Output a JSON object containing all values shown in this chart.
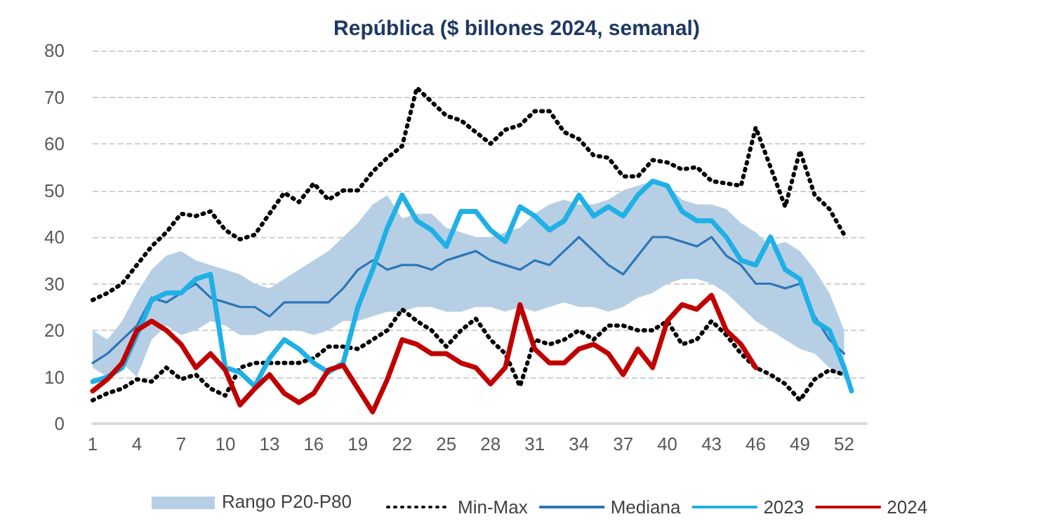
{
  "chart_data": {
    "type": "line",
    "title": "República ($ billones 2024, semanal)",
    "annotations": [
      "Rango P20-P80"
    ],
    "x": [
      1,
      2,
      3,
      4,
      5,
      6,
      7,
      8,
      9,
      10,
      11,
      12,
      13,
      14,
      15,
      16,
      17,
      18,
      19,
      20,
      21,
      22,
      23,
      24,
      25,
      26,
      27,
      28,
      29,
      30,
      31,
      32,
      33,
      34,
      35,
      36,
      37,
      38,
      39,
      40,
      41,
      42,
      43,
      44,
      45,
      46,
      47,
      48,
      49,
      50,
      51,
      52
    ],
    "xlim": [
      1,
      53.5
    ],
    "xticks": [
      1,
      4,
      7,
      10,
      13,
      16,
      19,
      22,
      25,
      28,
      31,
      34,
      37,
      40,
      43,
      46,
      49,
      52
    ],
    "ylim": [
      0,
      80
    ],
    "yticks": [
      0,
      10,
      20,
      30,
      40,
      50,
      60,
      70,
      80
    ],
    "grid": "y",
    "legend": "bottom",
    "marker": "none",
    "line_style": "solid",
    "series": [
      {
        "name": "Min-Max",
        "color": "#000000",
        "line_style": "dotted",
        "values": [
          26.5,
          28,
          30,
          34,
          38,
          41,
          45,
          44.5,
          45.5,
          41.5,
          39.5,
          40.5,
          45,
          49.5,
          47.5,
          51.5,
          48,
          50,
          50,
          54,
          57,
          59.5,
          72,
          69,
          66,
          65,
          62.5,
          60,
          63,
          64,
          67,
          67,
          62.5,
          61,
          57.5,
          57,
          53,
          53,
          56.5,
          56,
          54.5,
          55,
          52,
          51.5,
          51,
          63.5,
          55,
          46.5,
          58.5,
          49,
          46,
          40.5
        ]
      },
      {
        "color": "#000000",
        "line_style": "dotted",
        "values": [
          5,
          6.5,
          7.5,
          9.5,
          9,
          12,
          9.5,
          10.5,
          7.5,
          6,
          12,
          13,
          13,
          13,
          13,
          14,
          16.5,
          16.5,
          16,
          18,
          20,
          24.5,
          22,
          20,
          16.5,
          20,
          22.5,
          18,
          15,
          8,
          18,
          17,
          18,
          20,
          18,
          21,
          21,
          20,
          20,
          22,
          17,
          18,
          22,
          19,
          15,
          12,
          10.5,
          8.5,
          5,
          9.5,
          11.5,
          10.5
        ]
      },
      {
        "name": "Mediana",
        "color": "#2e75b6",
        "values": [
          13,
          15,
          18,
          21,
          27,
          26,
          28,
          30,
          27,
          26,
          25,
          25,
          23,
          26,
          26,
          26,
          26,
          29,
          33,
          35,
          33,
          34,
          34,
          33,
          35,
          36,
          37,
          35,
          34,
          33,
          35,
          34,
          37,
          40,
          37,
          34,
          32,
          36,
          40,
          40,
          39,
          38,
          40,
          36,
          34,
          30,
          30,
          29,
          30,
          23,
          18,
          15
        ],
        "lower": [
          12,
          10,
          13,
          10,
          18,
          21,
          19,
          20,
          22,
          21,
          19,
          19,
          20,
          20,
          20,
          19,
          20,
          22,
          22,
          23,
          24,
          24,
          25,
          25,
          24,
          24,
          25,
          25,
          24,
          25,
          24,
          25,
          26,
          25,
          25,
          24,
          25,
          27,
          28,
          30,
          31,
          31,
          30,
          28,
          25,
          22,
          20,
          18,
          16,
          15,
          12,
          10
        ],
        "upper": [
          20,
          18,
          22,
          28,
          33,
          36,
          37,
          35,
          34,
          33,
          32,
          30,
          29,
          31,
          33,
          35,
          37,
          40,
          43,
          47,
          49,
          44,
          45,
          45,
          42,
          41,
          40,
          40,
          41,
          42,
          45,
          47,
          48,
          47,
          47,
          48,
          50,
          51,
          52,
          51,
          48,
          47,
          47,
          46,
          43,
          41,
          38,
          39,
          37,
          33,
          28,
          20
        ]
      },
      {
        "name": "2023",
        "color": "#1fb0e6",
        "x": [
          1,
          2,
          3,
          4,
          5,
          6,
          7,
          8,
          9,
          10,
          11,
          12,
          13,
          14,
          15,
          16,
          17,
          18,
          19,
          20,
          21,
          22,
          23,
          24,
          25,
          26,
          27,
          28,
          29,
          30,
          31,
          32,
          33,
          34,
          35,
          36,
          37,
          38,
          39,
          40,
          41,
          42,
          43,
          44,
          45,
          46,
          47,
          48,
          49,
          50,
          51,
          52,
          52.5
        ],
        "values": [
          9,
          10,
          12,
          19,
          26.5,
          28,
          28,
          31,
          32,
          12,
          11,
          8,
          14,
          18,
          16,
          13,
          11,
          13,
          25,
          33,
          42,
          49,
          43.5,
          41.5,
          38,
          45.5,
          45.5,
          41.5,
          39,
          46.5,
          44.5,
          41.5,
          43.5,
          49,
          44.5,
          46.5,
          44.5,
          49,
          52,
          51,
          45.5,
          43.5,
          43.5,
          40,
          35,
          34,
          40,
          33,
          31,
          22,
          20,
          12,
          7
        ]
      },
      {
        "name": "2024",
        "color": "#c00000",
        "x": [
          1,
          2,
          3,
          4,
          5,
          6,
          7,
          8,
          9,
          10,
          11,
          12,
          13,
          14,
          15,
          16,
          17,
          18,
          19,
          20,
          21,
          22,
          23,
          24,
          25,
          26,
          27,
          28,
          29,
          30,
          31,
          32,
          33,
          34,
          35,
          36,
          37,
          38,
          39,
          40,
          41,
          42,
          43,
          44,
          45,
          46
        ],
        "values": [
          7,
          9.5,
          13,
          20,
          22,
          20,
          17,
          12,
          15,
          11.5,
          4,
          7.5,
          10.5,
          6.5,
          4.5,
          6.5,
          11.5,
          12.5,
          7.5,
          2.5,
          9.5,
          18,
          17,
          15,
          15,
          13,
          12,
          8.5,
          12,
          25.5,
          16,
          13,
          13,
          16,
          17,
          15,
          10.5,
          16,
          12,
          22,
          25.5,
          24.5,
          27.5,
          20,
          17,
          12
        ]
      }
    ]
  }
}
